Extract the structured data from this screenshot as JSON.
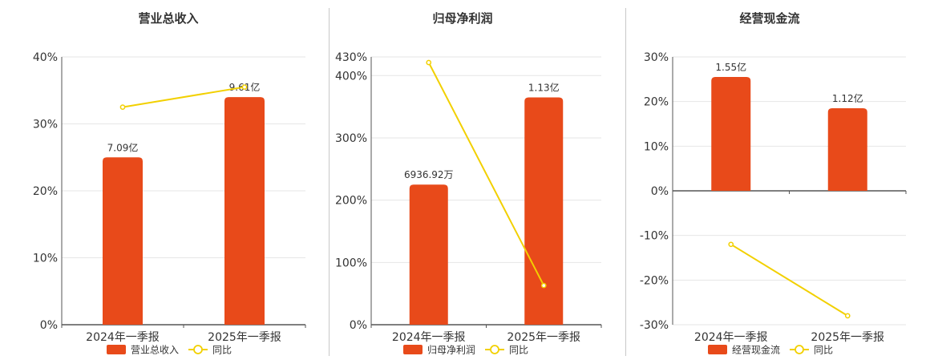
{
  "colors": {
    "bar": "#e84a1a",
    "line": "#f2d000",
    "grid": "#e6e6e6",
    "axis": "#555555",
    "text": "#333333"
  },
  "chart_data": [
    {
      "type": "bar",
      "title": "营业总收入",
      "categories": [
        "2024年一季报",
        "2025年一季报"
      ],
      "series": [
        {
          "name": "营业总收入",
          "type": "bar",
          "values": [
            25,
            34
          ],
          "labels": [
            "7.09亿",
            "9.61亿"
          ]
        },
        {
          "name": "同比",
          "type": "line",
          "values": [
            32.5,
            35.5
          ]
        }
      ],
      "yticks": [
        0,
        10,
        20,
        30,
        40
      ],
      "ytick_labels": [
        "0%",
        "10%",
        "20%",
        "30%",
        "40%"
      ],
      "ylim": [
        0,
        40
      ],
      "grid": true,
      "legend": "bottom"
    },
    {
      "type": "bar",
      "title": "归母净利润",
      "categories": [
        "2024年一季报",
        "2025年一季报"
      ],
      "series": [
        {
          "name": "归母净利润",
          "type": "bar",
          "values": [
            225,
            365
          ],
          "labels": [
            "6936.92万",
            "1.13亿"
          ]
        },
        {
          "name": "同比",
          "type": "line",
          "values": [
            421,
            63
          ]
        }
      ],
      "yticks": [
        0,
        100,
        200,
        300,
        400,
        430
      ],
      "ytick_labels": [
        "0%",
        "100%",
        "200%",
        "300%",
        "400%",
        "430%"
      ],
      "ylim": [
        0,
        430
      ],
      "grid": true,
      "legend": "bottom"
    },
    {
      "type": "bar",
      "title": "经营现金流",
      "categories": [
        "2024年一季报",
        "2025年一季报"
      ],
      "series": [
        {
          "name": "经营现金流",
          "type": "bar",
          "values": [
            25.5,
            18.5
          ],
          "labels": [
            "1.55亿",
            "1.12亿"
          ]
        },
        {
          "name": "同比",
          "type": "line",
          "values": [
            -12,
            -28
          ]
        }
      ],
      "yticks": [
        -30,
        -20,
        -10,
        0,
        10,
        20,
        30
      ],
      "ytick_labels": [
        "-30%",
        "-20%",
        "-10%",
        "0%",
        "10%",
        "20%",
        "30%"
      ],
      "ylim": [
        -30,
        30
      ],
      "grid": true,
      "legend": "bottom"
    }
  ]
}
